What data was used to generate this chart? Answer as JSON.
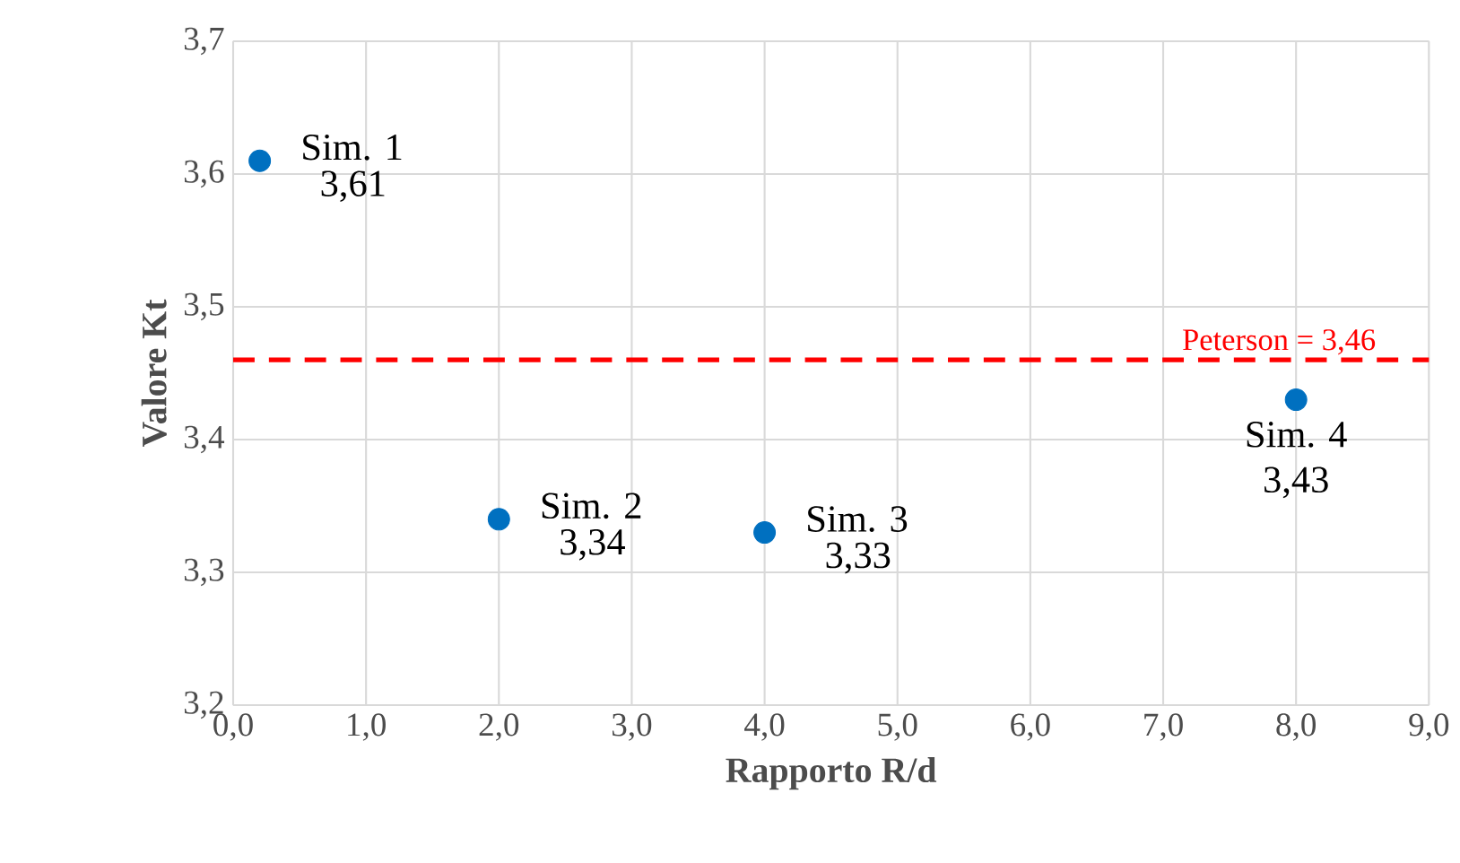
{
  "chart_data": {
    "type": "scatter",
    "xlabel": "Rapporto R/d",
    "ylabel": "Valore Kt",
    "x": [
      0.2,
      2,
      4,
      8
    ],
    "series": [
      {
        "color": "#0070c0",
        "values": [
          3.61,
          3.34,
          3.33,
          3.43
        ],
        "value_labels": [
          "3,61",
          "3,34",
          "3,33",
          "3,43"
        ]
      }
    ],
    "annotations": [
      {
        "text": "Sim. 1",
        "x": 0.2,
        "y": 3.61
      },
      {
        "text": "Sim. 2",
        "x": 2,
        "y": 3.34
      },
      {
        "text": "Sim. 3",
        "x": 4,
        "y": 3.33
      },
      {
        "text": "Sim. 4",
        "x": 8,
        "y": 3.43
      }
    ],
    "ref_lines": [
      {
        "axis": "y",
        "value": 3.46,
        "label": "Peterson = 3,46",
        "color": "#ff0000",
        "line_style": "dashed"
      }
    ],
    "xlim": [
      0,
      9
    ],
    "xticks": [
      {
        "value": 0,
        "label": "0,0"
      },
      {
        "value": 1,
        "label": "1,0"
      },
      {
        "value": 2,
        "label": "2,0"
      },
      {
        "value": 3,
        "label": "3,0"
      },
      {
        "value": 4,
        "label": "4,0"
      },
      {
        "value": 5,
        "label": "5,0"
      },
      {
        "value": 6,
        "label": "6,0"
      },
      {
        "value": 7,
        "label": "7,0"
      },
      {
        "value": 8,
        "label": "8,0"
      },
      {
        "value": 9,
        "label": "9,0"
      }
    ],
    "ylim": [
      3.2,
      3.7
    ],
    "yticks": [
      {
        "value": 3.2,
        "label": "3,2"
      },
      {
        "value": 3.3,
        "label": "3,3"
      },
      {
        "value": 3.4,
        "label": "3,4"
      },
      {
        "value": 3.5,
        "label": "3,5"
      },
      {
        "value": 3.6,
        "label": "3,6"
      },
      {
        "value": 3.7,
        "label": "3,7"
      }
    ],
    "grid": true,
    "marker": "circle"
  }
}
